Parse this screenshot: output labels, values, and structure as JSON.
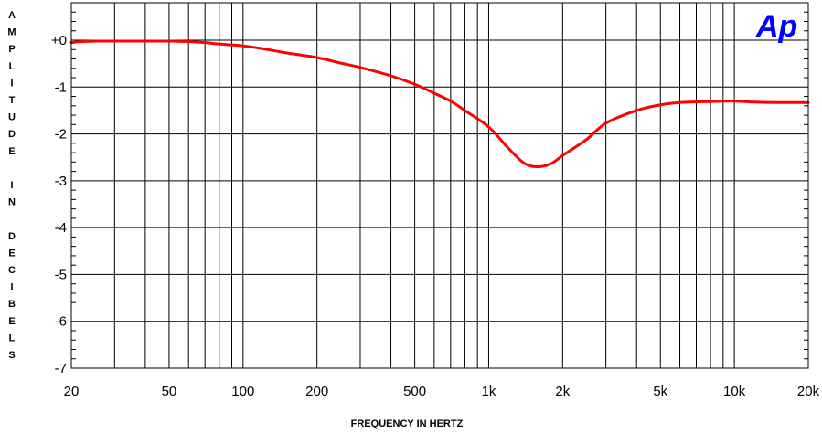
{
  "chart_data": {
    "type": "line",
    "title": "",
    "xlabel": "FREQUENCY IN HERTZ",
    "ylabel": "AMPLITUDE IN DECIBELS",
    "xscale": "log",
    "xlim": [
      20,
      20000
    ],
    "ylim": [
      -7,
      0.8
    ],
    "grid": true,
    "x_ticks": [
      {
        "value": 20,
        "label": "20"
      },
      {
        "value": 50,
        "label": "50"
      },
      {
        "value": 100,
        "label": "100"
      },
      {
        "value": 200,
        "label": "200"
      },
      {
        "value": 500,
        "label": "500"
      },
      {
        "value": 1000,
        "label": "1k"
      },
      {
        "value": 2000,
        "label": "2k"
      },
      {
        "value": 5000,
        "label": "5k"
      },
      {
        "value": 10000,
        "label": "10k"
      },
      {
        "value": 20000,
        "label": "20k"
      }
    ],
    "y_ticks": [
      {
        "value": 0,
        "label": "+0"
      },
      {
        "value": -1,
        "label": "-1"
      },
      {
        "value": -2,
        "label": "-2"
      },
      {
        "value": -3,
        "label": "-3"
      },
      {
        "value": -4,
        "label": "-4"
      },
      {
        "value": -5,
        "label": "-5"
      },
      {
        "value": -6,
        "label": "-6"
      },
      {
        "value": -7,
        "label": "-7"
      }
    ],
    "line_color": "#ff0000",
    "series": [
      {
        "color": "#ff0000",
        "x": [
          20,
          22,
          25,
          30,
          40,
          50,
          60,
          70,
          80,
          100,
          120,
          150,
          200,
          250,
          300,
          400,
          500,
          600,
          700,
          800,
          1000,
          1200,
          1400,
          1600,
          1800,
          2000,
          2500,
          3000,
          4000,
          5000,
          6000,
          8000,
          10000,
          12000,
          15000,
          20000
        ],
        "y": [
          -0.05,
          -0.03,
          -0.02,
          -0.02,
          -0.02,
          -0.02,
          -0.03,
          -0.05,
          -0.08,
          -0.12,
          -0.18,
          -0.27,
          -0.37,
          -0.49,
          -0.58,
          -0.76,
          -0.94,
          -1.13,
          -1.3,
          -1.5,
          -1.85,
          -2.3,
          -2.63,
          -2.7,
          -2.63,
          -2.46,
          -2.12,
          -1.77,
          -1.5,
          -1.38,
          -1.33,
          -1.31,
          -1.3,
          -1.32,
          -1.33,
          -1.33
        ]
      }
    ]
  },
  "logo": {
    "text": "Ap",
    "color": "#0000ff"
  }
}
